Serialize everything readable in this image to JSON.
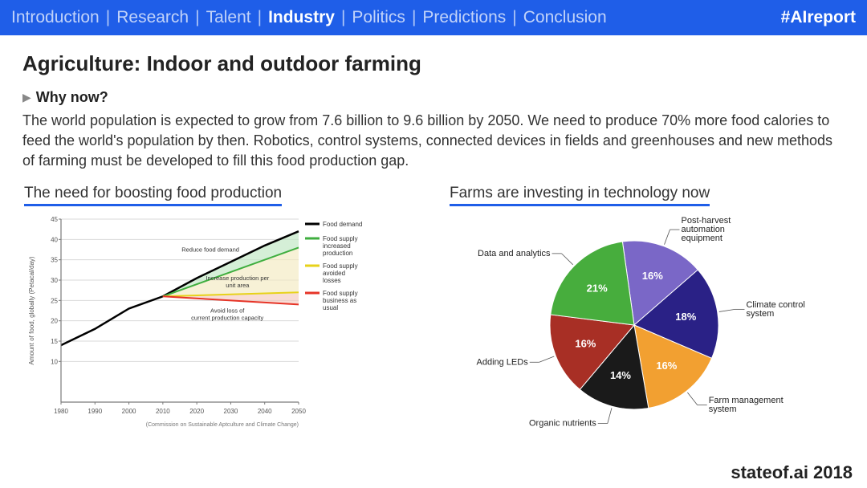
{
  "nav": {
    "items": [
      "Introduction",
      "Research",
      "Talent",
      "Industry",
      "Politics",
      "Predictions",
      "Conclusion"
    ],
    "active_index": 3,
    "hashtag": "#AIreport",
    "bg": "#1f5ee8"
  },
  "title": "Agriculture: Indoor and outdoor farming",
  "subhead": "Why now?",
  "body": "The world population is expected to grow from 7.6 billion to 9.6 billion by 2050. We need to produce 70% more food calories to feed the world's population by then. Robotics, control systems, connected devices in fields and greenhouses and new methods of farming must be developed to fill this food production gap.",
  "line_chart": {
    "heading": "The need for boosting food production",
    "type": "line-area",
    "xlim": [
      1980,
      2050
    ],
    "ylim": [
      0,
      45
    ],
    "xticks": [
      1980,
      1990,
      2000,
      2010,
      2020,
      2030,
      2040,
      2050
    ],
    "yticks": [
      10,
      15,
      20,
      25,
      30,
      35,
      40,
      45
    ],
    "ylabel": "Amount of food, globally (Petacal/day)",
    "source": "(Commission on Sustainable Aptculture and Climate Change)",
    "grid_color": "#d9d9d9",
    "axis_color": "#7a7a7a",
    "label_fontsize": 8,
    "series": {
      "demand": {
        "color": "#000000",
        "points": [
          [
            1980,
            14
          ],
          [
            1990,
            18
          ],
          [
            2000,
            23
          ],
          [
            2010,
            26
          ],
          [
            2020,
            30.5
          ],
          [
            2030,
            34.5
          ],
          [
            2040,
            38.5
          ],
          [
            2050,
            42
          ]
        ]
      },
      "supply_increased": {
        "color": "#3fae3f",
        "fill": "#bfe6c2",
        "points": [
          [
            2010,
            26
          ],
          [
            2050,
            38
          ]
        ]
      },
      "supply_avoided": {
        "color": "#e7d21a",
        "fill": "#f3eac0",
        "points": [
          [
            2010,
            26
          ],
          [
            2050,
            27
          ]
        ]
      },
      "supply_bau": {
        "color": "#e63427",
        "fill": "#f4c9bf",
        "points": [
          [
            2010,
            26
          ],
          [
            2050,
            24
          ]
        ]
      }
    },
    "annotations": [
      {
        "text": "Reduce food demand",
        "x": 2024,
        "y": 37
      },
      {
        "text": "Increase production per unit area",
        "x": 2032,
        "y": 30,
        "fill_bg": true
      },
      {
        "text": "Avoid loss of current production capacity",
        "x": 2029,
        "y": 22
      }
    ],
    "legend": [
      {
        "label": "Food demand",
        "color": "#000000"
      },
      {
        "label": "Food supply – increased production",
        "color": "#3fae3f"
      },
      {
        "label": "Food supply – avoided losses",
        "color": "#e7d21a"
      },
      {
        "label": "Food supply – business as usual",
        "color": "#e63427"
      }
    ]
  },
  "pie_chart": {
    "heading": "Farms are investing in technology now",
    "type": "pie",
    "label_fontsize": 11,
    "pct_fontsize": 13,
    "pct_color": "#ffffff",
    "slices": [
      {
        "label": "Post-harvest automation equipment",
        "value": 16,
        "color": "#7a67c7",
        "label_side": "right"
      },
      {
        "label": "Climate control system",
        "value": 18,
        "color": "#2a2186",
        "label_side": "right"
      },
      {
        "label": "Farm management system",
        "value": 16,
        "color": "#f2a031",
        "label_side": "right"
      },
      {
        "label": "Organic nutrients",
        "value": 14,
        "color": "#1a1a1a",
        "label_side": "left"
      },
      {
        "label": "Adding LEDs",
        "value": 16,
        "color": "#a82f25",
        "label_side": "left"
      },
      {
        "label": "Data and analytics",
        "value": 21,
        "color": "#47ad3d",
        "label_side": "left"
      }
    ]
  },
  "footer": "stateof.ai 2018"
}
